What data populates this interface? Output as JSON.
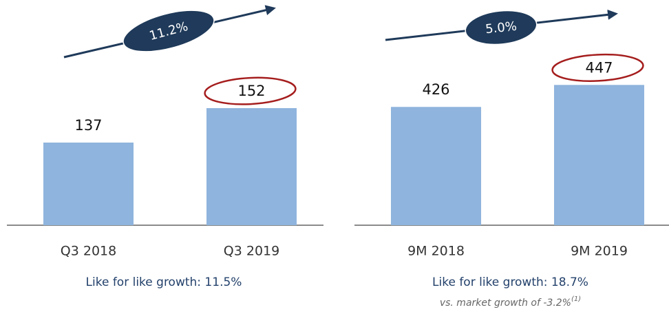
{
  "chart_data": [
    {
      "type": "bar",
      "categories": [
        "Q3 2018",
        "Q3 2019"
      ],
      "values": [
        137,
        152
      ],
      "color": "#8fb4dd",
      "ylim": [
        101,
        161
      ],
      "annotation": "11.2%",
      "footnote": "Like for like growth: 11.5%"
    },
    {
      "type": "bar",
      "categories": [
        "9M 2018",
        "9M 2019"
      ],
      "values": [
        426,
        447
      ],
      "color": "#8fb4dd",
      "ylim": [
        313,
        463
      ],
      "annotation": "5.0%",
      "footnote": "Like for like growth: 18.7%",
      "subnote": "vs. market growth of -3.2%",
      "subnote_ref": "(1)"
    }
  ]
}
